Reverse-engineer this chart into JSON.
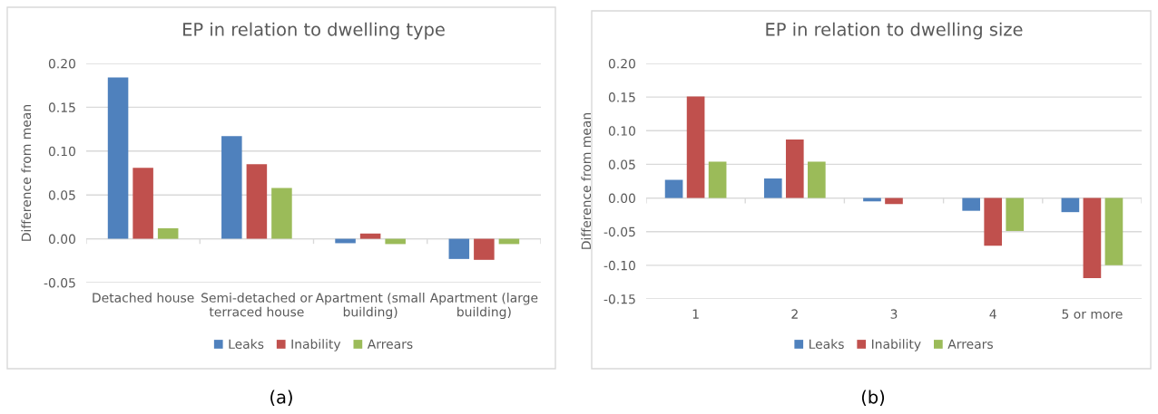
{
  "chart_data": [
    {
      "type": "bar",
      "title": "EP in relation to dwelling type",
      "ylabel": "Difference from mean",
      "categories": [
        "Detached house",
        "Semi-detached or\nterraced house",
        "Apartment (small\nbuilding)",
        "Apartment (large\nbuilding)"
      ],
      "series": [
        {
          "name": "Leaks",
          "color": "#4f81bd",
          "values": [
            0.184,
            0.117,
            -0.005,
            -0.023
          ]
        },
        {
          "name": "Inability",
          "color": "#c0504d",
          "values": [
            0.081,
            0.085,
            0.006,
            -0.024
          ]
        },
        {
          "name": "Arrears",
          "color": "#9bbb59",
          "values": [
            0.012,
            0.058,
            -0.006,
            -0.006
          ]
        }
      ],
      "ylim": [
        -0.05,
        0.2
      ],
      "yticks": [
        {
          "value": -0.05,
          "label": "-0.05"
        },
        {
          "value": 0,
          "label": "0.00"
        },
        {
          "value": 0.05,
          "label": "0.05"
        },
        {
          "value": 0.1,
          "label": "0.10"
        },
        {
          "value": 0.15,
          "label": "0.15"
        },
        {
          "value": 0.2,
          "label": "0.20"
        }
      ],
      "grid": "y",
      "legend": "bottom",
      "annotations": [
        "(a)"
      ]
    },
    {
      "type": "bar",
      "title": "EP in relation to dwelling size",
      "ylabel": "Difference from mean",
      "categories": [
        "1",
        "2",
        "3",
        "4",
        "5 or more"
      ],
      "series": [
        {
          "name": "Leaks",
          "color": "#4f81bd",
          "values": [
            0.027,
            0.029,
            -0.005,
            -0.019,
            -0.021
          ]
        },
        {
          "name": "Inability",
          "color": "#c0504d",
          "values": [
            0.151,
            0.087,
            -0.009,
            -0.071,
            -0.119
          ]
        },
        {
          "name": "Arrears",
          "color": "#9bbb59",
          "values": [
            0.054,
            0.054,
            0,
            -0.049,
            -0.1
          ]
        }
      ],
      "ylim": [
        -0.15,
        0.2
      ],
      "yticks": [
        {
          "value": -0.15,
          "label": "-0.15"
        },
        {
          "value": -0.1,
          "label": "-0.10"
        },
        {
          "value": -0.05,
          "label": "-0.05"
        },
        {
          "value": 0,
          "label": "0.00"
        },
        {
          "value": 0.05,
          "label": "0.05"
        },
        {
          "value": 0.1,
          "label": "0.10"
        },
        {
          "value": 0.15,
          "label": "0.15"
        },
        {
          "value": 0.2,
          "label": "0.20"
        }
      ],
      "grid": "y",
      "legend": "bottom",
      "annotations": [
        "(b)"
      ]
    }
  ]
}
